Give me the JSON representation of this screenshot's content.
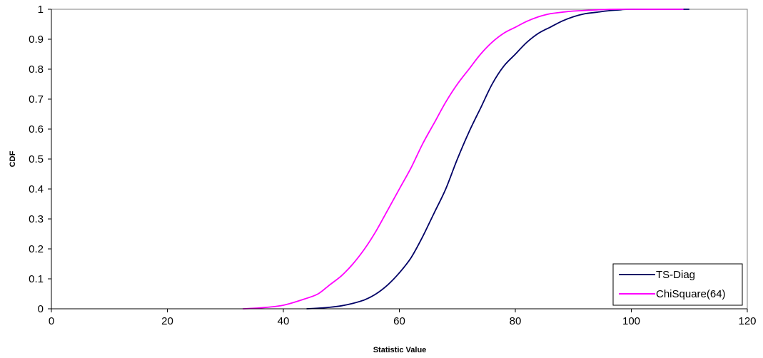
{
  "chart_data": {
    "type": "line",
    "xlabel": "Statistic Value",
    "ylabel": "CDF",
    "xlim": [
      0,
      120
    ],
    "ylim": [
      0,
      1
    ],
    "x_ticks": [
      "0",
      "20",
      "40",
      "60",
      "80",
      "100",
      "120"
    ],
    "y_ticks": [
      "0",
      "0.1",
      "0.2",
      "0.3",
      "0.4",
      "0.5",
      "0.6",
      "0.7",
      "0.8",
      "0.9",
      "1"
    ],
    "grid": false,
    "legend_position": "bottom-right",
    "series": [
      {
        "name": "TS-Diag",
        "color": "#000066",
        "points": [
          [
            44,
            0.0
          ],
          [
            46,
            0.002
          ],
          [
            48,
            0.005
          ],
          [
            50,
            0.01
          ],
          [
            52,
            0.018
          ],
          [
            54,
            0.03
          ],
          [
            56,
            0.05
          ],
          [
            58,
            0.08
          ],
          [
            60,
            0.12
          ],
          [
            62,
            0.17
          ],
          [
            64,
            0.24
          ],
          [
            66,
            0.32
          ],
          [
            68,
            0.4
          ],
          [
            70,
            0.5
          ],
          [
            72,
            0.59
          ],
          [
            74,
            0.67
          ],
          [
            76,
            0.75
          ],
          [
            78,
            0.81
          ],
          [
            80,
            0.85
          ],
          [
            82,
            0.89
          ],
          [
            84,
            0.92
          ],
          [
            86,
            0.94
          ],
          [
            88,
            0.96
          ],
          [
            90,
            0.975
          ],
          [
            92,
            0.985
          ],
          [
            94,
            0.99
          ],
          [
            96,
            0.995
          ],
          [
            98,
            0.998
          ],
          [
            100,
            1.0
          ],
          [
            110,
            1.0
          ]
        ]
      },
      {
        "name": "ChiSquare(64)",
        "color": "#ff00ff",
        "points": [
          [
            33,
            0.0
          ],
          [
            36,
            0.003
          ],
          [
            40,
            0.012
          ],
          [
            44,
            0.035
          ],
          [
            46,
            0.05
          ],
          [
            48,
            0.08
          ],
          [
            50,
            0.11
          ],
          [
            52,
            0.15
          ],
          [
            54,
            0.2
          ],
          [
            56,
            0.26
          ],
          [
            58,
            0.33
          ],
          [
            60,
            0.4
          ],
          [
            62,
            0.47
          ],
          [
            64,
            0.55
          ],
          [
            66,
            0.62
          ],
          [
            68,
            0.69
          ],
          [
            70,
            0.75
          ],
          [
            72,
            0.8
          ],
          [
            74,
            0.85
          ],
          [
            76,
            0.89
          ],
          [
            78,
            0.92
          ],
          [
            80,
            0.94
          ],
          [
            82,
            0.96
          ],
          [
            84,
            0.975
          ],
          [
            86,
            0.985
          ],
          [
            88,
            0.99
          ],
          [
            90,
            0.994
          ],
          [
            94,
            0.998
          ],
          [
            98,
            1.0
          ],
          [
            109,
            1.0
          ]
        ]
      }
    ]
  }
}
